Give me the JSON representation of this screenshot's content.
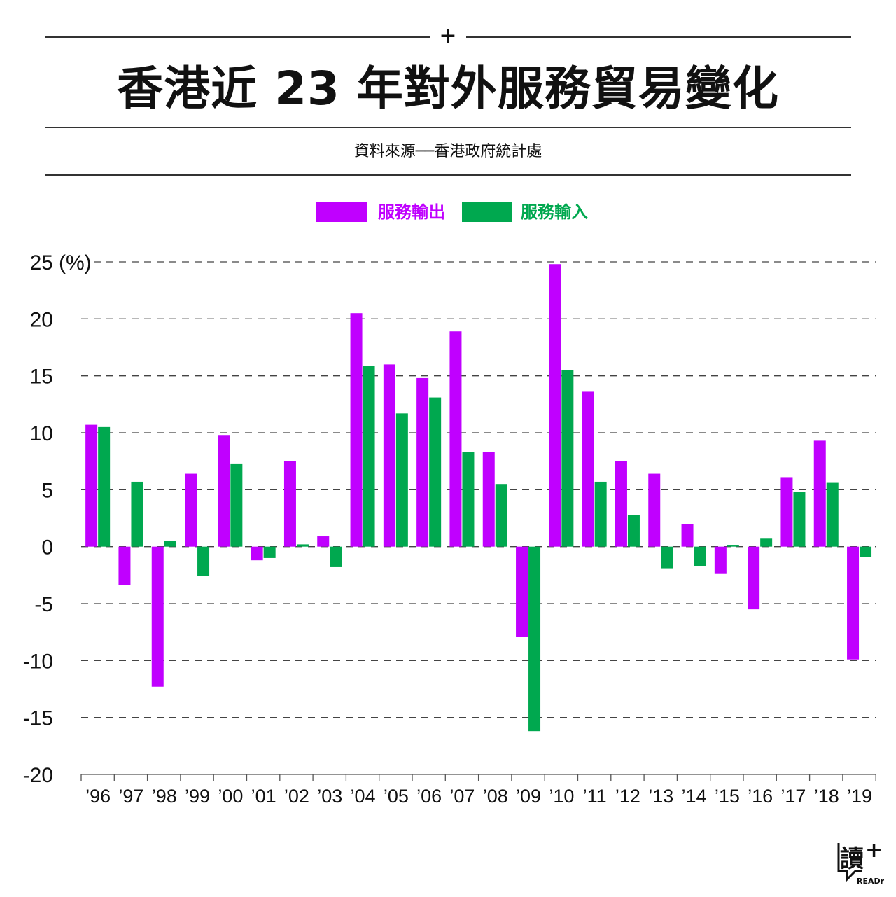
{
  "header": {
    "plus": "+",
    "title": "香港近 23 年對外服務貿易變化",
    "source": "資料來源──香港政府統計處"
  },
  "legend": [
    {
      "label": "服務輸出",
      "color": "#c000ff"
    },
    {
      "label": "服務輸入",
      "color": "#00a84f"
    }
  ],
  "brand": {
    "logo_char": "讀",
    "logo_plus": "+",
    "logo_text": "READr"
  },
  "chart_data": {
    "type": "bar",
    "title": "香港近 23 年對外服務貿易變化",
    "ylabel": "(%)",
    "ylim": [
      -20,
      25
    ],
    "yticks": [
      25,
      20,
      15,
      10,
      5,
      0,
      -5,
      -10,
      -15,
      -20
    ],
    "grid": true,
    "legend_position": "top-center",
    "categories": [
      "’96",
      "’97",
      "’98",
      "’99",
      "’00",
      "’01",
      "’02",
      "’03",
      "’04",
      "’05",
      "’06",
      "’07",
      "’08",
      "’09",
      "’10",
      "’11",
      "’12",
      "’13",
      "’14",
      "’15",
      "’16",
      "’17",
      "’18",
      "’19"
    ],
    "series": [
      {
        "name": "服務輸出",
        "color": "#c000ff",
        "values": [
          10.7,
          -3.4,
          -12.3,
          6.4,
          9.8,
          -1.2,
          7.5,
          0.9,
          20.5,
          16.0,
          14.8,
          18.9,
          8.3,
          -7.9,
          24.8,
          13.6,
          7.5,
          6.4,
          2.0,
          -2.4,
          -5.5,
          6.1,
          9.3,
          -9.9
        ]
      },
      {
        "name": "服務輸入",
        "color": "#00a84f",
        "values": [
          10.5,
          5.7,
          0.5,
          -2.6,
          7.3,
          -1.0,
          0.2,
          -1.8,
          15.9,
          11.7,
          13.1,
          8.3,
          5.5,
          -16.2,
          15.5,
          5.7,
          2.8,
          -1.9,
          -1.7,
          0.1,
          0.7,
          4.8,
          5.6,
          -0.9
        ]
      }
    ]
  }
}
